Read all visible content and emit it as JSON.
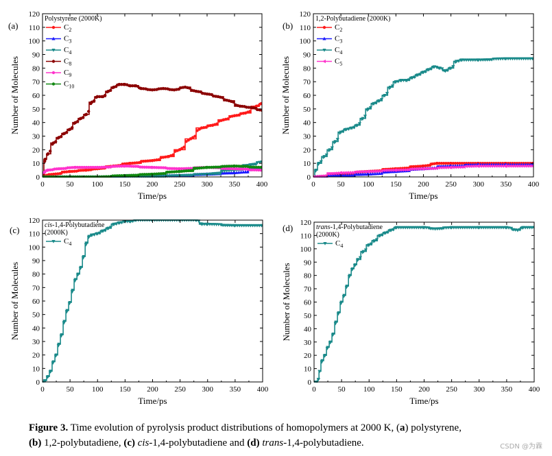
{
  "caption": {
    "label": "Figure 3.",
    "text_1": " Time evolution of pyrolysis product distributions of homopolymers at 2000 K, (",
    "a": "a",
    "text_2": ") polystyrene,",
    "b": "(b)",
    "text_3": " 1,2-polybutadiene, ",
    "c": "(c)",
    "cis": "cis",
    "text_4": "-1,4-polybutadiene and ",
    "d": "(d)",
    "trans": "trans",
    "text_5": "-1,4-polybutadiene."
  },
  "watermark": "CSDN @为霖",
  "chart_data": [
    {
      "id": "a",
      "panel_label": "(a)",
      "type": "line",
      "title": "Polystyrene (2000K)",
      "xlabel": "Time/ps",
      "ylabel": "Number of Molecules",
      "xlim": [
        0,
        400
      ],
      "ylim": [
        0,
        120
      ],
      "xticks": [
        0,
        50,
        100,
        150,
        200,
        250,
        300,
        350,
        400
      ],
      "yticks": [
        0,
        10,
        20,
        30,
        40,
        50,
        60,
        70,
        80,
        90,
        100,
        110,
        120
      ],
      "legend_position": "top-left",
      "series": [
        {
          "name": "C2",
          "base": "C",
          "sub": "2",
          "color": "#ff1a1a",
          "marker": "circle",
          "x": [
            0,
            20,
            50,
            80,
            100,
            130,
            160,
            200,
            230,
            250,
            270,
            290,
            310,
            330,
            350,
            370,
            390,
            400
          ],
          "y": [
            1,
            2,
            4,
            5,
            6,
            8,
            10,
            12,
            15,
            20,
            28,
            36,
            38,
            42,
            45,
            47,
            52,
            54
          ]
        },
        {
          "name": "C3",
          "base": "C",
          "sub": "3",
          "color": "#1a1aff",
          "marker": "triangle",
          "x": [
            0,
            100,
            200,
            250,
            300,
            350,
            400
          ],
          "y": [
            0,
            0,
            1,
            1,
            2,
            3,
            6
          ]
        },
        {
          "name": "C4",
          "base": "C",
          "sub": "4",
          "color": "#1a8a8a",
          "marker": "tri-down",
          "x": [
            0,
            100,
            200,
            250,
            300,
            350,
            380,
            400
          ],
          "y": [
            0,
            0,
            0,
            1,
            2,
            5,
            9,
            11
          ]
        },
        {
          "name": "C8",
          "base": "C",
          "sub": "8",
          "color": "#8b0000",
          "marker": "circle",
          "x": [
            0,
            5,
            10,
            20,
            30,
            40,
            50,
            60,
            70,
            80,
            90,
            100,
            110,
            120,
            130,
            140,
            150,
            160,
            170,
            180,
            200,
            220,
            240,
            260,
            280,
            300,
            320,
            340,
            360,
            380,
            400
          ],
          "y": [
            0,
            13,
            17,
            25,
            29,
            32,
            35,
            40,
            43,
            46,
            55,
            59,
            59,
            63,
            66,
            68,
            68,
            67,
            67,
            65,
            64,
            65,
            64,
            66,
            63,
            61,
            59,
            56,
            52,
            51,
            49
          ]
        },
        {
          "name": "C9",
          "base": "C",
          "sub": "9",
          "color": "#ff33cc",
          "marker": "circle",
          "x": [
            0,
            10,
            30,
            60,
            100,
            150,
            200,
            250,
            300,
            350,
            400
          ],
          "y": [
            3,
            5,
            6,
            7,
            7,
            8,
            7,
            6,
            7,
            6,
            5
          ]
        },
        {
          "name": "C10",
          "base": "C",
          "sub": "10",
          "color": "#118811",
          "marker": "circle",
          "x": [
            0,
            100,
            150,
            200,
            250,
            300,
            350,
            400
          ],
          "y": [
            0,
            0,
            1,
            2,
            4,
            7,
            8,
            7
          ]
        }
      ]
    },
    {
      "id": "b",
      "panel_label": "(b)",
      "type": "line",
      "title": "1,2-Polybutadiene (2000K)",
      "xlabel": "Time/ps",
      "ylabel": "Number of Molecules",
      "xlim": [
        0,
        400
      ],
      "ylim": [
        0,
        120
      ],
      "xticks": [
        0,
        50,
        100,
        150,
        200,
        250,
        300,
        350,
        400
      ],
      "yticks": [
        0,
        10,
        20,
        30,
        40,
        50,
        60,
        70,
        80,
        90,
        100,
        110,
        120
      ],
      "legend_position": "top-left",
      "series": [
        {
          "name": "C2",
          "base": "C",
          "sub": "2",
          "color": "#ff1a1a",
          "marker": "circle",
          "x": [
            0,
            50,
            100,
            150,
            200,
            225,
            250,
            300,
            350,
            400
          ],
          "y": [
            0,
            2,
            4,
            6,
            8,
            10,
            10,
            10,
            10,
            10
          ]
        },
        {
          "name": "C3",
          "base": "C",
          "sub": "3",
          "color": "#1a1aff",
          "marker": "triangle",
          "x": [
            0,
            50,
            100,
            150,
            200,
            250,
            300,
            350,
            400
          ],
          "y": [
            0,
            1,
            2,
            4,
            6,
            8,
            9,
            9,
            9
          ]
        },
        {
          "name": "C4",
          "base": "C",
          "sub": "4",
          "color": "#1a8a8a",
          "marker": "tri-down",
          "x": [
            0,
            5,
            10,
            20,
            30,
            40,
            50,
            60,
            70,
            80,
            90,
            100,
            110,
            120,
            130,
            140,
            150,
            160,
            170,
            180,
            190,
            200,
            210,
            220,
            230,
            240,
            250,
            260,
            270,
            300,
            350,
            400
          ],
          "y": [
            0,
            5,
            10,
            15,
            20,
            26,
            33,
            35,
            36,
            38,
            43,
            50,
            54,
            56,
            60,
            66,
            70,
            71,
            71,
            73,
            75,
            77,
            79,
            81,
            80,
            78,
            80,
            85,
            86,
            86,
            87,
            87
          ]
        },
        {
          "name": "C5",
          "base": "C",
          "sub": "5",
          "color": "#ff33cc",
          "marker": "tri-left",
          "x": [
            0,
            50,
            100,
            150,
            200,
            250,
            300,
            350,
            400
          ],
          "y": [
            0,
            3,
            4,
            5,
            6,
            7,
            8,
            8,
            8
          ]
        }
      ]
    },
    {
      "id": "c",
      "panel_label": "(c)",
      "type": "line",
      "title": "cis-1,4-Polybutadiene",
      "title_italic": "cis",
      "title_rest": "-1,4-Polybutadiene",
      "title_line2": "(2000K)",
      "xlabel": "Time/ps",
      "ylabel": "Number of Molecules",
      "xlim": [
        0,
        400
      ],
      "ylim": [
        0,
        120
      ],
      "xticks": [
        0,
        50,
        100,
        150,
        200,
        250,
        300,
        350,
        400
      ],
      "yticks": [
        0,
        10,
        20,
        30,
        40,
        50,
        60,
        70,
        80,
        90,
        100,
        110,
        120
      ],
      "legend_position": "top-left",
      "series": [
        {
          "name": "C4",
          "base": "C",
          "sub": "4",
          "color": "#1a8a8a",
          "marker": "tri-down",
          "x": [
            0,
            5,
            10,
            15,
            20,
            25,
            30,
            35,
            40,
            45,
            50,
            55,
            60,
            65,
            70,
            75,
            80,
            85,
            90,
            100,
            110,
            120,
            130,
            140,
            150,
            160,
            170,
            200,
            250,
            280,
            290,
            300,
            350,
            400
          ],
          "y": [
            0,
            1,
            4,
            8,
            15,
            20,
            28,
            35,
            45,
            53,
            59,
            68,
            76,
            80,
            85,
            93,
            103,
            108,
            109,
            110,
            112,
            114,
            117,
            118,
            119,
            119,
            120,
            120,
            120,
            120,
            117,
            117,
            116,
            116
          ]
        }
      ]
    },
    {
      "id": "d",
      "panel_label": "(d)",
      "type": "line",
      "title": "trans-1,4-Polybutadiene",
      "title_italic": "trans",
      "title_rest": "-1,4-Polybutadiene",
      "title_line2": "(2000K)",
      "xlabel": "Time/ps",
      "ylabel": "Number of Molecules",
      "xlim": [
        0,
        400
      ],
      "ylim": [
        0,
        120
      ],
      "xticks": [
        0,
        50,
        100,
        150,
        200,
        250,
        300,
        350,
        400
      ],
      "yticks": [
        0,
        10,
        20,
        30,
        40,
        50,
        60,
        70,
        80,
        90,
        100,
        110,
        120
      ],
      "legend_position": "top-left",
      "series": [
        {
          "name": "C4",
          "base": "C",
          "sub": "4",
          "color": "#1a8a8a",
          "marker": "tri-down",
          "x": [
            0,
            5,
            8,
            10,
            15,
            20,
            25,
            30,
            35,
            40,
            45,
            50,
            55,
            60,
            65,
            70,
            75,
            80,
            90,
            100,
            110,
            120,
            130,
            140,
            150,
            200,
            220,
            250,
            300,
            350,
            370,
            380,
            400
          ],
          "y": [
            0,
            0,
            2,
            8,
            16,
            20,
            26,
            30,
            36,
            45,
            52,
            60,
            65,
            72,
            80,
            85,
            88,
            92,
            98,
            103,
            106,
            110,
            112,
            114,
            116,
            116,
            115,
            116,
            116,
            116,
            114,
            116,
            116
          ]
        }
      ]
    }
  ]
}
